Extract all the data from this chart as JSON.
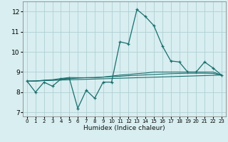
{
  "xlabel": "Humidex (Indice chaleur)",
  "xlim": [
    -0.5,
    23.5
  ],
  "ylim": [
    6.8,
    12.5
  ],
  "xticks": [
    0,
    1,
    2,
    3,
    4,
    5,
    6,
    7,
    8,
    9,
    10,
    11,
    12,
    13,
    14,
    15,
    16,
    17,
    18,
    19,
    20,
    21,
    22,
    23
  ],
  "yticks": [
    7,
    8,
    9,
    10,
    11,
    12
  ],
  "bg_color": "#d8eef0",
  "grid_color": "#b0d0d4",
  "line_color": "#1a6e6e",
  "line1_x": [
    0,
    1,
    2,
    3,
    4,
    5,
    6,
    7,
    8,
    9,
    10,
    11,
    12,
    13,
    14,
    15,
    16,
    17,
    18,
    19,
    20,
    21,
    22,
    23
  ],
  "line1_y": [
    8.55,
    8.0,
    8.5,
    8.3,
    8.65,
    8.7,
    7.2,
    8.1,
    7.7,
    8.5,
    8.5,
    10.5,
    10.4,
    12.1,
    11.75,
    11.3,
    10.3,
    9.55,
    9.5,
    9.0,
    9.0,
    9.5,
    9.2,
    8.85
  ],
  "line2_x": [
    0,
    1,
    2,
    3,
    4,
    5,
    6,
    7,
    8,
    9,
    10,
    11,
    12,
    13,
    14,
    15,
    16,
    17,
    18,
    19,
    20,
    21,
    22,
    23
  ],
  "line2_y": [
    8.55,
    8.55,
    8.6,
    8.62,
    8.68,
    8.73,
    8.72,
    8.72,
    8.72,
    8.75,
    8.8,
    8.85,
    8.88,
    8.92,
    8.95,
    9.0,
    9.0,
    9.0,
    9.0,
    9.0,
    9.0,
    9.0,
    9.0,
    8.85
  ],
  "line3_x": [
    0,
    1,
    2,
    3,
    4,
    5,
    6,
    7,
    8,
    9,
    10,
    11,
    12,
    13,
    14,
    15,
    16,
    17,
    18,
    19,
    20,
    21,
    22,
    23
  ],
  "line3_y": [
    8.55,
    8.55,
    8.58,
    8.6,
    8.64,
    8.67,
    8.7,
    8.72,
    8.73,
    8.75,
    8.77,
    8.79,
    8.82,
    8.84,
    8.86,
    8.88,
    8.9,
    8.92,
    8.93,
    8.94,
    8.94,
    8.94,
    8.93,
    8.85
  ],
  "line4_x": [
    0,
    23
  ],
  "line4_y": [
    8.55,
    8.85
  ]
}
